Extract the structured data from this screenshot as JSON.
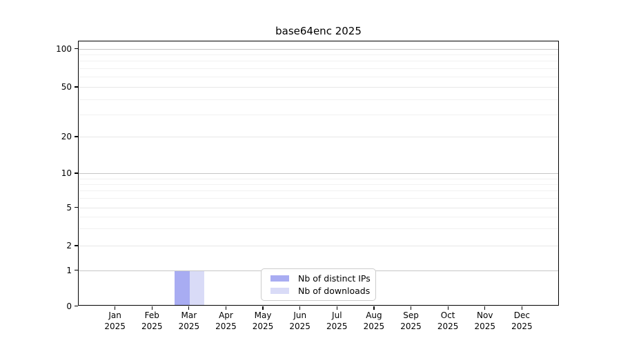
{
  "chart_data": {
    "type": "bar",
    "title": "base64enc 2025",
    "months": [
      "Jan",
      "Feb",
      "Mar",
      "Apr",
      "May",
      "Jun",
      "Jul",
      "Aug",
      "Sep",
      "Oct",
      "Nov",
      "Dec"
    ],
    "year": "2025",
    "series": [
      {
        "name": "Nb of distinct IPs",
        "color": "#a8acf2",
        "values": [
          0,
          0,
          1,
          0,
          0,
          0,
          0,
          0,
          0,
          0,
          0,
          0
        ]
      },
      {
        "name": "Nb of downloads",
        "color": "#d9dbf7",
        "values": [
          0,
          0,
          1,
          0,
          0,
          0,
          0,
          0,
          0,
          0,
          0,
          0
        ]
      }
    ],
    "yticks": [
      0,
      1,
      2,
      5,
      10,
      20,
      50,
      100
    ],
    "scale": "log1p",
    "grid": "horizontal",
    "legend_position": "inside-bottom-center",
    "axis_color": "#000000",
    "grid_decade_color": "#c6c6c6",
    "grid_major_color": "#e7e7e7",
    "grid_minor_color": "#f1f1f1"
  }
}
